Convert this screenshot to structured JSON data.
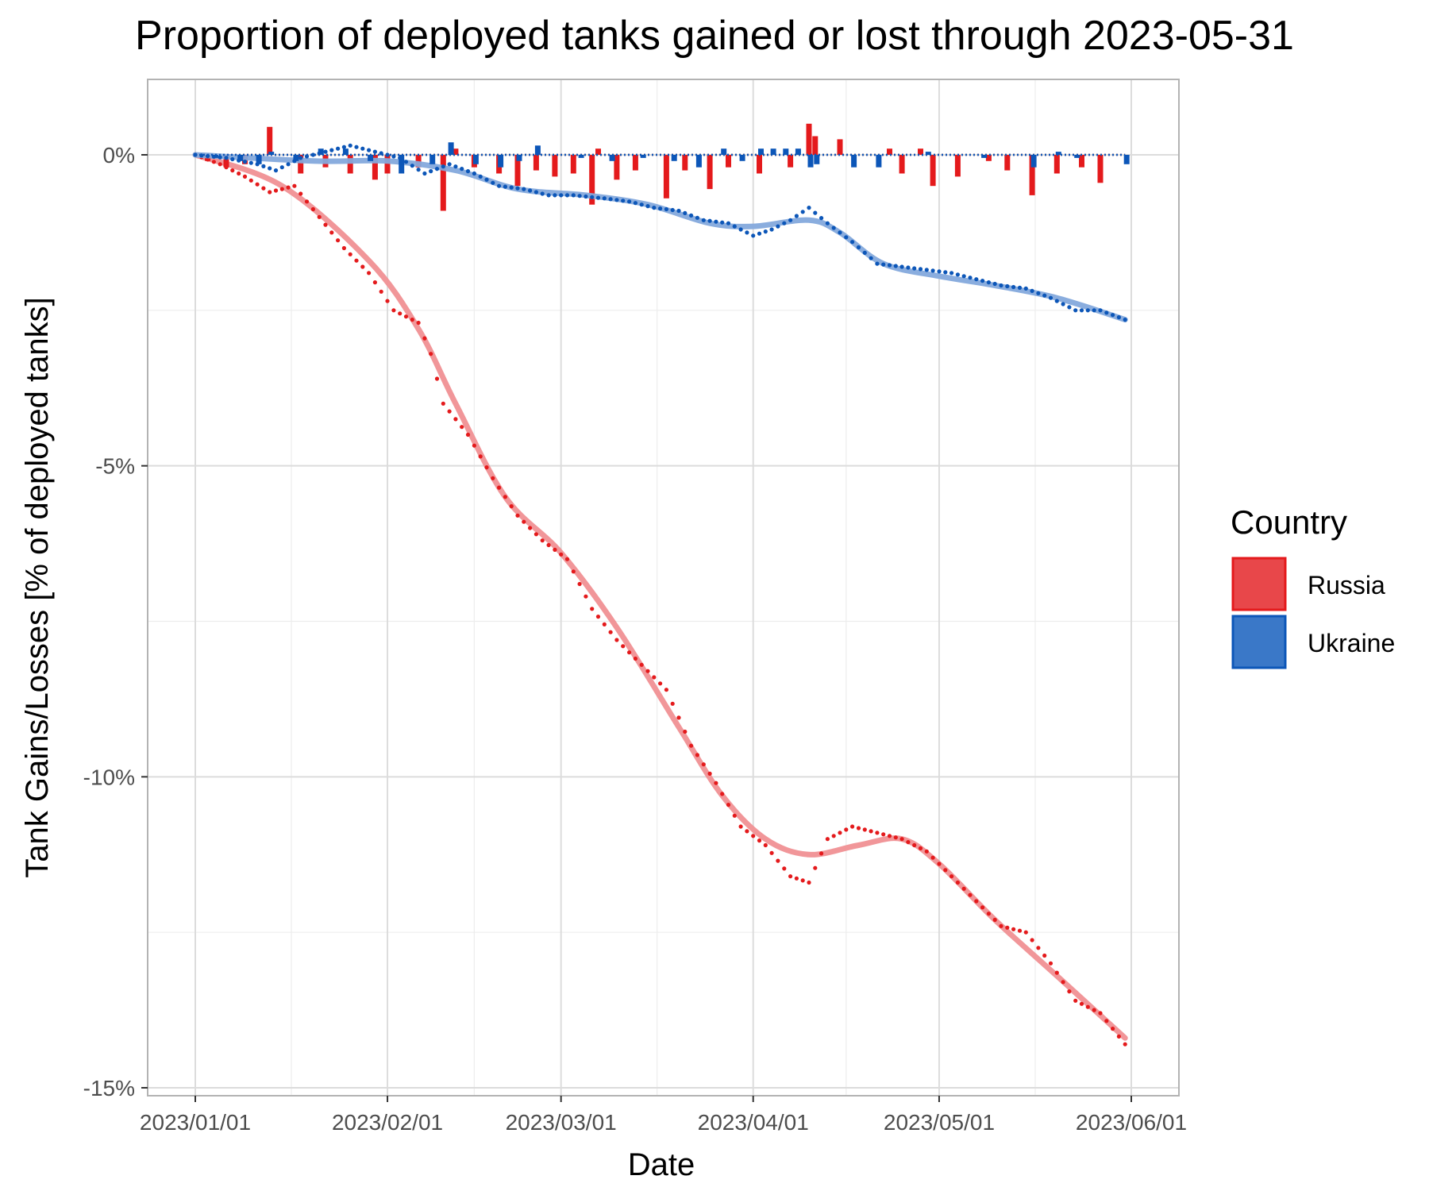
{
  "chart_data": {
    "type": "line",
    "title": "Proportion of deployed tanks gained or lost through 2023-05-31",
    "xlabel": "Date",
    "ylabel": "Tank Gains/Losses [% of deployed tanks]",
    "x_range": [
      "2023-01-01",
      "2023-06-01"
    ],
    "x_ticks": [
      {
        "date": "2023-01-01",
        "label": "2023/01/01"
      },
      {
        "date": "2023-02-01",
        "label": "2023/02/01"
      },
      {
        "date": "2023-03-01",
        "label": "2023/03/01"
      },
      {
        "date": "2023-04-01",
        "label": "2023/04/01"
      },
      {
        "date": "2023-05-01",
        "label": "2023/05/01"
      },
      {
        "date": "2023-06-01",
        "label": "2023/06/01"
      }
    ],
    "ylim": [
      -15,
      0
    ],
    "y_ticks": [
      {
        "value": 0,
        "label": "0%"
      },
      {
        "value": -5,
        "label": "-5%"
      },
      {
        "value": -10,
        "label": "-10%"
      },
      {
        "value": -15,
        "label": "-15%"
      }
    ],
    "grid": true,
    "legend": {
      "title": "Country",
      "position": "right"
    },
    "series": [
      {
        "name": "Russia",
        "color": "#e41a1c",
        "fill": "#e8474a",
        "smooth_color": "#f09094",
        "cumulative": [
          [
            "2023-01-01",
            0.0
          ],
          [
            "2023-01-05",
            -0.15
          ],
          [
            "2023-01-09",
            -0.35
          ],
          [
            "2023-01-13",
            -0.6
          ],
          [
            "2023-01-17",
            -0.5
          ],
          [
            "2023-01-21",
            -1.0
          ],
          [
            "2023-01-25",
            -1.5
          ],
          [
            "2023-01-29",
            -1.9
          ],
          [
            "2023-02-02",
            -2.5
          ],
          [
            "2023-02-06",
            -2.7
          ],
          [
            "2023-02-08",
            -3.2
          ],
          [
            "2023-02-10",
            -4.0
          ],
          [
            "2023-02-14",
            -4.5
          ],
          [
            "2023-02-18",
            -5.2
          ],
          [
            "2023-02-22",
            -5.8
          ],
          [
            "2023-02-26",
            -6.2
          ],
          [
            "2023-03-02",
            -6.5
          ],
          [
            "2023-03-06",
            -7.3
          ],
          [
            "2023-03-10",
            -7.8
          ],
          [
            "2023-03-14",
            -8.2
          ],
          [
            "2023-03-18",
            -8.6
          ],
          [
            "2023-03-22",
            -9.5
          ],
          [
            "2023-03-26",
            -10.1
          ],
          [
            "2023-03-30",
            -10.8
          ],
          [
            "2023-04-03",
            -11.1
          ],
          [
            "2023-04-07",
            -11.6
          ],
          [
            "2023-04-10",
            -11.7
          ],
          [
            "2023-04-13",
            -11.0
          ],
          [
            "2023-04-17",
            -10.8
          ],
          [
            "2023-04-21",
            -10.9
          ],
          [
            "2023-04-25",
            -11.0
          ],
          [
            "2023-04-29",
            -11.2
          ],
          [
            "2023-05-03",
            -11.6
          ],
          [
            "2023-05-07",
            -12.0
          ],
          [
            "2023-05-11",
            -12.4
          ],
          [
            "2023-05-15",
            -12.5
          ],
          [
            "2023-05-19",
            -13.0
          ],
          [
            "2023-05-23",
            -13.6
          ],
          [
            "2023-05-27",
            -13.8
          ],
          [
            "2023-05-31",
            -14.3
          ]
        ],
        "smooth": [
          [
            "2023-01-01",
            0.0
          ],
          [
            "2023-01-15",
            -0.5
          ],
          [
            "2023-01-29",
            -1.7
          ],
          [
            "2023-02-06",
            -2.8
          ],
          [
            "2023-02-12",
            -4.0
          ],
          [
            "2023-02-20",
            -5.5
          ],
          [
            "2023-03-01",
            -6.4
          ],
          [
            "2023-03-10",
            -7.6
          ],
          [
            "2023-03-20",
            -9.2
          ],
          [
            "2023-03-27",
            -10.3
          ],
          [
            "2023-04-03",
            -11.0
          ],
          [
            "2023-04-10",
            -11.25
          ],
          [
            "2023-04-18",
            -11.1
          ],
          [
            "2023-04-25",
            -11.0
          ],
          [
            "2023-05-01",
            -11.4
          ],
          [
            "2023-05-10",
            -12.3
          ],
          [
            "2023-05-20",
            -13.2
          ],
          [
            "2023-05-31",
            -14.2
          ]
        ],
        "daily": [
          [
            "2023-01-03",
            -0.1
          ],
          [
            "2023-01-06",
            -0.2
          ],
          [
            "2023-01-09",
            -0.15
          ],
          [
            "2023-01-13",
            0.45
          ],
          [
            "2023-01-18",
            -0.3
          ],
          [
            "2023-01-22",
            -0.2
          ],
          [
            "2023-01-26",
            -0.3
          ],
          [
            "2023-01-30",
            -0.4
          ],
          [
            "2023-02-01",
            -0.3
          ],
          [
            "2023-02-06",
            -0.2
          ],
          [
            "2023-02-10",
            -0.9
          ],
          [
            "2023-02-12",
            0.1
          ],
          [
            "2023-02-15",
            -0.2
          ],
          [
            "2023-02-19",
            -0.3
          ],
          [
            "2023-02-22",
            -0.5
          ],
          [
            "2023-02-25",
            -0.25
          ],
          [
            "2023-02-28",
            -0.35
          ],
          [
            "2023-03-03",
            -0.3
          ],
          [
            "2023-03-06",
            -0.8
          ],
          [
            "2023-03-07",
            0.1
          ],
          [
            "2023-03-10",
            -0.4
          ],
          [
            "2023-03-13",
            -0.25
          ],
          [
            "2023-03-18",
            -0.7
          ],
          [
            "2023-03-21",
            -0.25
          ],
          [
            "2023-03-25",
            -0.55
          ],
          [
            "2023-03-28",
            -0.2
          ],
          [
            "2023-04-02",
            -0.3
          ],
          [
            "2023-04-07",
            -0.2
          ],
          [
            "2023-04-10",
            0.5
          ],
          [
            "2023-04-11",
            0.3
          ],
          [
            "2023-04-15",
            0.25
          ],
          [
            "2023-04-23",
            0.1
          ],
          [
            "2023-04-25",
            -0.3
          ],
          [
            "2023-04-28",
            0.1
          ],
          [
            "2023-04-30",
            -0.5
          ],
          [
            "2023-05-04",
            -0.35
          ],
          [
            "2023-05-09",
            -0.1
          ],
          [
            "2023-05-12",
            -0.25
          ],
          [
            "2023-05-16",
            -0.65
          ],
          [
            "2023-05-20",
            -0.3
          ],
          [
            "2023-05-24",
            -0.2
          ],
          [
            "2023-05-27",
            -0.45
          ]
        ]
      },
      {
        "name": "Ukraine",
        "color": "#0c56b8",
        "fill": "#3a78c8",
        "smooth_color": "#84a9dc",
        "cumulative": [
          [
            "2023-01-01",
            0.0
          ],
          [
            "2023-01-06",
            -0.05
          ],
          [
            "2023-01-11",
            -0.15
          ],
          [
            "2023-01-14",
            -0.25
          ],
          [
            "2023-01-18",
            -0.05
          ],
          [
            "2023-01-22",
            0.05
          ],
          [
            "2023-01-26",
            0.15
          ],
          [
            "2023-01-30",
            0.05
          ],
          [
            "2023-02-03",
            -0.05
          ],
          [
            "2023-02-07",
            -0.3
          ],
          [
            "2023-02-11",
            -0.15
          ],
          [
            "2023-02-15",
            -0.3
          ],
          [
            "2023-02-19",
            -0.5
          ],
          [
            "2023-02-23",
            -0.55
          ],
          [
            "2023-02-27",
            -0.65
          ],
          [
            "2023-03-03",
            -0.65
          ],
          [
            "2023-03-08",
            -0.7
          ],
          [
            "2023-03-12",
            -0.75
          ],
          [
            "2023-03-16",
            -0.85
          ],
          [
            "2023-03-20",
            -0.9
          ],
          [
            "2023-03-24",
            -1.05
          ],
          [
            "2023-03-28",
            -1.1
          ],
          [
            "2023-04-01",
            -1.3
          ],
          [
            "2023-04-04",
            -1.2
          ],
          [
            "2023-04-07",
            -1.05
          ],
          [
            "2023-04-10",
            -0.85
          ],
          [
            "2023-04-13",
            -1.1
          ],
          [
            "2023-04-17",
            -1.4
          ],
          [
            "2023-04-21",
            -1.75
          ],
          [
            "2023-04-25",
            -1.8
          ],
          [
            "2023-04-29",
            -1.85
          ],
          [
            "2023-05-03",
            -1.9
          ],
          [
            "2023-05-07",
            -2.0
          ],
          [
            "2023-05-11",
            -2.1
          ],
          [
            "2023-05-15",
            -2.15
          ],
          [
            "2023-05-19",
            -2.3
          ],
          [
            "2023-05-23",
            -2.5
          ],
          [
            "2023-05-27",
            -2.5
          ],
          [
            "2023-05-31",
            -2.65
          ]
        ],
        "smooth": [
          [
            "2023-01-01",
            0.0
          ],
          [
            "2023-01-20",
            -0.1
          ],
          [
            "2023-02-01",
            -0.1
          ],
          [
            "2023-02-12",
            -0.25
          ],
          [
            "2023-02-22",
            -0.55
          ],
          [
            "2023-03-05",
            -0.65
          ],
          [
            "2023-03-15",
            -0.8
          ],
          [
            "2023-03-25",
            -1.1
          ],
          [
            "2023-04-01",
            -1.15
          ],
          [
            "2023-04-10",
            -1.05
          ],
          [
            "2023-04-15",
            -1.25
          ],
          [
            "2023-04-22",
            -1.75
          ],
          [
            "2023-05-01",
            -1.95
          ],
          [
            "2023-05-10",
            -2.1
          ],
          [
            "2023-05-20",
            -2.3
          ],
          [
            "2023-05-31",
            -2.65
          ]
        ],
        "daily": [
          [
            "2023-01-04",
            -0.05
          ],
          [
            "2023-01-08",
            -0.1
          ],
          [
            "2023-01-11",
            -0.15
          ],
          [
            "2023-01-13",
            0.05
          ],
          [
            "2023-01-17",
            -0.1
          ],
          [
            "2023-01-21",
            0.1
          ],
          [
            "2023-01-25",
            0.1
          ],
          [
            "2023-01-29",
            -0.1
          ],
          [
            "2023-02-03",
            -0.3
          ],
          [
            "2023-02-08",
            -0.15
          ],
          [
            "2023-02-11",
            0.2
          ],
          [
            "2023-02-15",
            -0.15
          ],
          [
            "2023-02-19",
            -0.2
          ],
          [
            "2023-02-22",
            -0.1
          ],
          [
            "2023-02-25",
            0.15
          ],
          [
            "2023-03-04",
            -0.05
          ],
          [
            "2023-03-09",
            -0.1
          ],
          [
            "2023-03-14",
            -0.05
          ],
          [
            "2023-03-19",
            -0.1
          ],
          [
            "2023-03-23",
            -0.2
          ],
          [
            "2023-03-27",
            0.1
          ],
          [
            "2023-03-30",
            -0.1
          ],
          [
            "2023-04-02",
            0.1
          ],
          [
            "2023-04-04",
            0.1
          ],
          [
            "2023-04-06",
            0.1
          ],
          [
            "2023-04-08",
            0.1
          ],
          [
            "2023-04-10",
            -0.2
          ],
          [
            "2023-04-11",
            -0.15
          ],
          [
            "2023-04-17",
            -0.2
          ],
          [
            "2023-04-21",
            -0.2
          ],
          [
            "2023-04-29",
            0.05
          ],
          [
            "2023-05-08",
            -0.05
          ],
          [
            "2023-05-16",
            -0.2
          ],
          [
            "2023-05-20",
            0.05
          ],
          [
            "2023-05-23",
            -0.05
          ],
          [
            "2023-05-31",
            -0.15
          ]
        ]
      }
    ]
  }
}
